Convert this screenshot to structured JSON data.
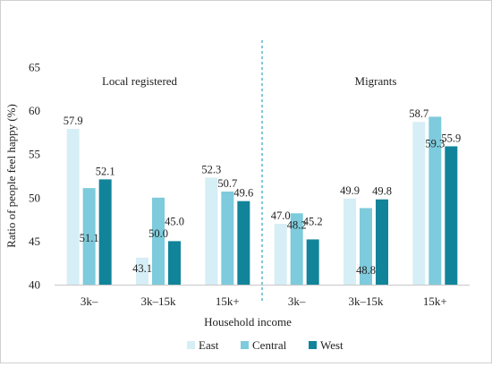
{
  "chart_data": {
    "type": "bar",
    "panels": [
      {
        "name": "Local registered"
      },
      {
        "name": "Migrants"
      }
    ],
    "categories": [
      "3k–",
      "3k–15k",
      "15k+"
    ],
    "series": [
      {
        "name": "East",
        "color": "#d6eef5",
        "values": [
          [
            57.9,
            43.1,
            52.3
          ],
          [
            47.0,
            49.9,
            58.7
          ]
        ]
      },
      {
        "name": "Central",
        "color": "#7dcbdc",
        "values": [
          [
            51.1,
            50.0,
            50.7
          ],
          [
            48.2,
            48.8,
            59.3
          ]
        ]
      },
      {
        "name": "West",
        "color": "#11849a",
        "values": [
          [
            52.1,
            45.0,
            49.6
          ],
          [
            45.2,
            49.8,
            55.9
          ]
        ]
      }
    ],
    "data_labels": [
      [
        [
          "57.9",
          "43.1",
          "52.3"
        ],
        [
          "47.0",
          "49.9",
          "58.7"
        ]
      ],
      [
        [
          "51.1",
          "50.0",
          "50.7"
        ],
        [
          "48.2",
          "48.8",
          "59.3"
        ]
      ],
      [
        [
          "52.1",
          "45.0",
          "49.6"
        ],
        [
          "45.2",
          "49.8",
          "55.9"
        ]
      ]
    ],
    "xlabel": "Household income",
    "ylabel": "Ratio of people feel happy (%)",
    "ylim": [
      40,
      65
    ],
    "yticks": [
      "40",
      "45",
      "50",
      "55",
      "60",
      "65"
    ],
    "grid": false,
    "legend_position": "bottom",
    "divider_color": "#2ea3bd"
  }
}
